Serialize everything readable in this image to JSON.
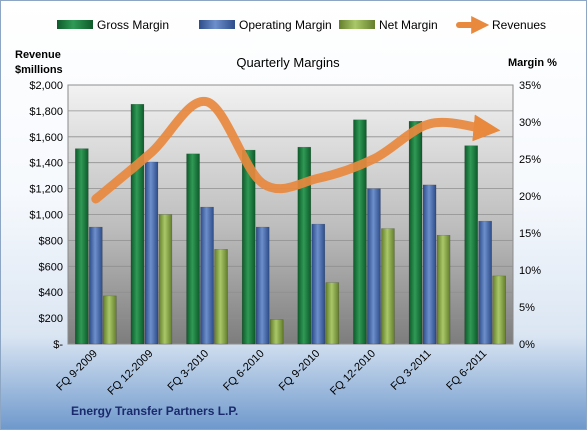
{
  "chart_data": {
    "type": "bar",
    "title": "Quarterly Margins",
    "footer": "Energy Transfer Partners L.P.",
    "ylabel_left": [
      "Revenue",
      "$millions"
    ],
    "ylabel_right": "Margin %",
    "categories": [
      "FQ 9-2009",
      "FQ 12-2009",
      "FQ 3-2010",
      "FQ 6-2010",
      "FQ 9-2010",
      "FQ 12-2010",
      "FQ 3-2011",
      "FQ 6-2011"
    ],
    "left_axis": {
      "range": [
        0,
        2000
      ],
      "ticks": [
        0,
        200,
        400,
        600,
        800,
        1000,
        1200,
        1400,
        1600,
        1800,
        2000
      ],
      "tick_labels": [
        "$-",
        "$200",
        "$400",
        "$600",
        "$800",
        "$1,000",
        "$1,200",
        "$1,400",
        "$1,600",
        "$1,800",
        "$2,000"
      ]
    },
    "right_axis": {
      "range": [
        0,
        35
      ],
      "ticks": [
        0,
        5,
        10,
        15,
        20,
        25,
        30,
        35
      ],
      "tick_labels": [
        "0%",
        "5%",
        "10%",
        "15%",
        "20%",
        "25%",
        "30%",
        "35%"
      ]
    },
    "series": [
      {
        "name": "Gross Margin",
        "kind": "bar",
        "axis": "right",
        "color": "#1f7a3d",
        "values": [
          26.4,
          32.4,
          25.7,
          26.2,
          26.6,
          30.3,
          30.1,
          26.8
        ]
      },
      {
        "name": "Operating Margin",
        "kind": "bar",
        "axis": "right",
        "color": "#4a6fb0",
        "values": [
          15.8,
          24.6,
          18.5,
          15.8,
          16.2,
          21.0,
          21.5,
          16.6
        ]
      },
      {
        "name": "Net Margin",
        "kind": "bar",
        "axis": "right",
        "color": "#8fb04c",
        "values": [
          6.5,
          17.5,
          12.8,
          3.3,
          8.3,
          15.6,
          14.7,
          9.2
        ]
      },
      {
        "name": "Revenues",
        "kind": "line",
        "axis": "left",
        "color": "#e8893e",
        "values": [
          1120,
          1480,
          1870,
          1240,
          1280,
          1430,
          1700,
          1660
        ]
      }
    ],
    "legend": {
      "position": "top"
    },
    "grid": true
  }
}
